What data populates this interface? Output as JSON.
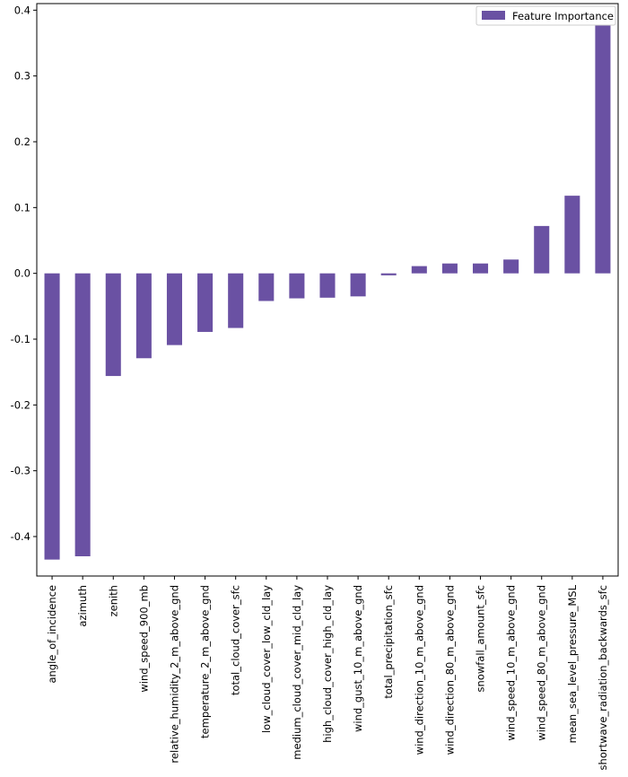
{
  "chart_data": {
    "type": "bar",
    "title": "",
    "xlabel": "",
    "ylabel": "",
    "ylim": [
      -0.46,
      0.41
    ],
    "yticks": [
      -0.4,
      -0.3,
      -0.2,
      -0.1,
      0.0,
      0.1,
      0.2,
      0.3,
      0.4
    ],
    "ytick_labels": [
      "-0.4",
      "-0.3",
      "-0.2",
      "-0.1",
      "0.0",
      "0.1",
      "0.2",
      "0.3",
      "0.4"
    ],
    "grid": false,
    "legend": {
      "position": "top-right",
      "entries": [
        "Feature Importance"
      ]
    },
    "bar_color": "#6a51a3",
    "categories": [
      "angle_of_incidence",
      "azimuth",
      "zenith",
      "wind_speed_900_mb",
      "relative_humidity_2_m_above_gnd",
      "temperature_2_m_above_gnd",
      "total_cloud_cover_sfc",
      "low_cloud_cover_low_cld_lay",
      "medium_cloud_cover_mid_cld_lay",
      "high_cloud_cover_high_cld_lay",
      "wind_gust_10_m_above_gnd",
      "total_precipitation_sfc",
      "wind_direction_10_m_above_gnd",
      "wind_direction_80_m_above_gnd",
      "snowfall_amount_sfc",
      "wind_speed_10_m_above_gnd",
      "wind_speed_80_m_above_gnd",
      "mean_sea_level_pressure_MSL",
      "shortwave_radiation_backwards_sfc"
    ],
    "series": [
      {
        "name": "Feature Importance",
        "values": [
          -0.435,
          -0.43,
          -0.156,
          -0.129,
          -0.109,
          -0.089,
          -0.083,
          -0.042,
          -0.038,
          -0.037,
          -0.035,
          -0.003,
          0.011,
          0.015,
          0.015,
          0.021,
          0.072,
          0.118,
          0.385
        ]
      }
    ]
  }
}
